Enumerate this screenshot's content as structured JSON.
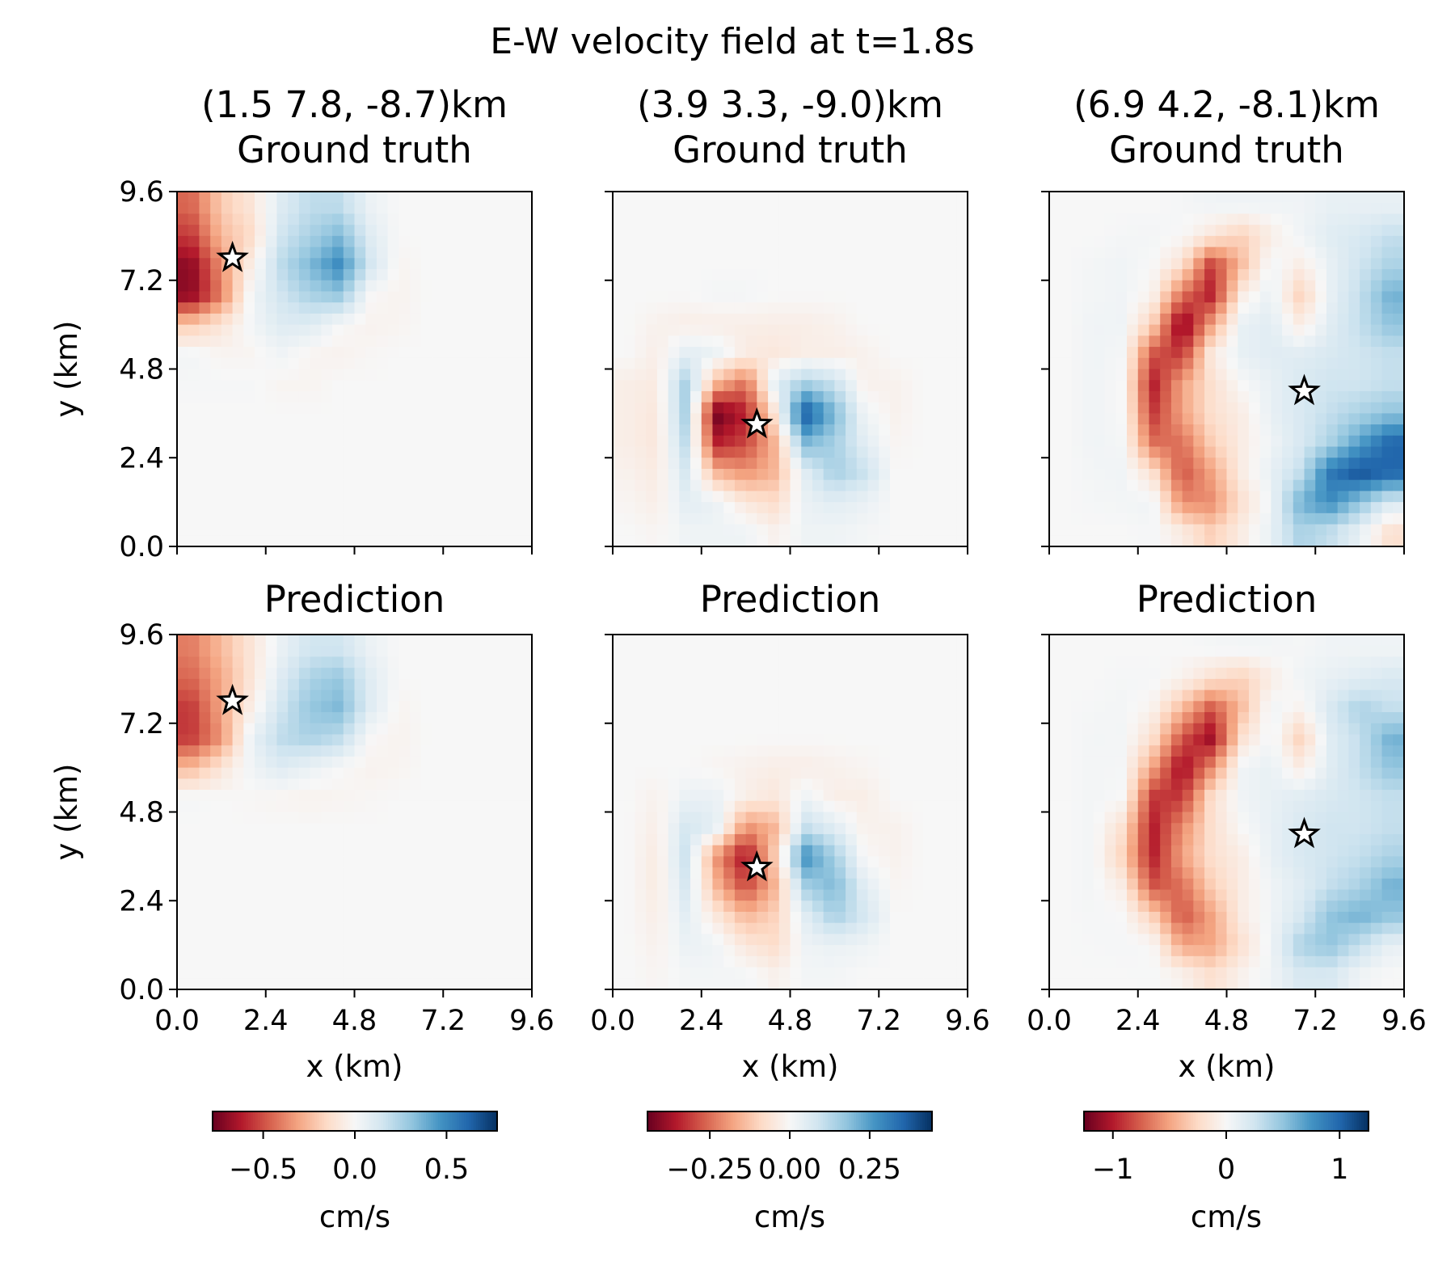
{
  "title": "E-W velocity field at t=1.8s",
  "columns": [
    {
      "location": "(1.5 7.8, -8.7)km",
      "colorbar": {
        "colormap": "RdBu",
        "clim": [
          -0.776,
          0.776
        ],
        "ticks": [
          -0.5,
          0.0,
          0.5
        ],
        "tick_labels": [
          "−0.5",
          "0.0",
          "0.5"
        ],
        "label": "cm/s"
      }
    },
    {
      "location": "(3.9 3.3, -9.0)km",
      "colorbar": {
        "colormap": "RdBu",
        "clim": [
          -0.445,
          0.445
        ],
        "ticks": [
          -0.25,
          0.0,
          0.25
        ],
        "tick_labels": [
          "−0.25",
          "0.00",
          "0.25"
        ],
        "label": "cm/s"
      }
    },
    {
      "location": "(6.9 4.2, -8.1)km",
      "colorbar": {
        "colormap": "RdBu",
        "clim": [
          -1.255,
          1.255
        ],
        "ticks": [
          -1,
          0,
          1
        ],
        "tick_labels": [
          "−1",
          "0",
          "1"
        ],
        "label": "cm/s"
      }
    }
  ],
  "rows": [
    {
      "title": "Ground truth"
    },
    {
      "title": "Prediction"
    }
  ],
  "axes": {
    "xlabel": "x (km)",
    "ylabel": "y (km)",
    "xlim": [
      0,
      9.6
    ],
    "ylim": [
      0,
      9.6
    ],
    "ticks": [
      0.0,
      2.4,
      4.8,
      7.2,
      9.6
    ],
    "tick_labels": [
      "0.0",
      "2.4",
      "4.8",
      "7.2",
      "9.6"
    ]
  },
  "chart_data": [
    {
      "type": "heatmap",
      "row": 0,
      "col": 0,
      "title": "Ground truth",
      "source": {
        "x": 1.5,
        "y": 7.8,
        "marker": "star"
      },
      "grid_note_rows": "top (y=9.2) to bottom (y=0.4), 0.8 km cells",
      "values": [
        [
          -0.45,
          -0.2,
          -0.1,
          0.1,
          0.2,
          0.2,
          0.05,
          0,
          0,
          0,
          0,
          0
        ],
        [
          -0.55,
          -0.25,
          -0.15,
          0.15,
          0.25,
          0.35,
          0.1,
          0,
          0,
          0,
          0,
          0
        ],
        [
          -0.7,
          -0.35,
          -0.05,
          0.2,
          0.35,
          0.5,
          0.15,
          -0.02,
          0,
          0,
          0,
          0
        ],
        [
          -0.7,
          -0.4,
          0.02,
          0.15,
          0.25,
          0.3,
          0,
          -0.03,
          0,
          0,
          0,
          0
        ],
        [
          -0.2,
          -0.1,
          0.02,
          0.1,
          0.1,
          0,
          -0.03,
          -0.02,
          0,
          0,
          0,
          0
        ],
        [
          0.02,
          -0.02,
          -0.02,
          0.03,
          -0.02,
          -0.03,
          -0.01,
          0,
          0,
          0,
          0,
          0
        ],
        [
          0.01,
          0.01,
          0.01,
          -0.02,
          -0.02,
          0,
          0,
          0,
          0,
          0,
          0,
          0
        ],
        [
          0,
          0,
          0,
          0,
          0,
          0,
          0,
          0,
          0,
          0,
          0,
          0
        ],
        [
          0,
          0,
          0,
          0,
          0,
          0,
          0,
          0,
          0,
          0,
          0,
          0
        ],
        [
          0,
          0,
          0,
          0,
          0,
          0,
          0,
          0,
          0,
          0,
          0,
          0
        ],
        [
          0,
          0,
          0,
          0,
          0,
          0,
          0,
          0,
          0,
          0,
          0,
          0
        ],
        [
          0,
          0,
          0,
          0,
          0,
          0,
          0,
          0,
          0,
          0,
          0,
          0
        ]
      ]
    },
    {
      "type": "heatmap",
      "row": 0,
      "col": 1,
      "title": "Ground truth",
      "source": {
        "x": 3.9,
        "y": 3.3,
        "marker": "star"
      },
      "values": [
        [
          0,
          0,
          0,
          0,
          0,
          0,
          0,
          0,
          0,
          0,
          0,
          0
        ],
        [
          0,
          0,
          0,
          0,
          0,
          0,
          0,
          0,
          0,
          0,
          0,
          0
        ],
        [
          0,
          0,
          0,
          0,
          0,
          0,
          0,
          0,
          0,
          0,
          0,
          0
        ],
        [
          0,
          0,
          0,
          0.01,
          0.01,
          0,
          0,
          0,
          0,
          0,
          0,
          0
        ],
        [
          0,
          -0.02,
          -0.03,
          -0.03,
          -0.03,
          -0.03,
          -0.03,
          -0.02,
          0,
          0,
          0,
          0
        ],
        [
          0,
          -0.03,
          0.05,
          0.03,
          -0.04,
          -0.05,
          -0.03,
          -0.03,
          -0.02,
          0,
          0,
          0
        ],
        [
          -0.03,
          -0.04,
          0.15,
          -0.15,
          -0.25,
          0.05,
          0.15,
          0.1,
          -0.02,
          -0.02,
          0,
          0
        ],
        [
          -0.03,
          -0.05,
          0.15,
          -0.44,
          -0.35,
          -0.05,
          0.38,
          0.2,
          0.02,
          -0.02,
          0,
          0
        ],
        [
          -0.03,
          -0.05,
          0.12,
          -0.35,
          -0.3,
          -0.15,
          0.2,
          0.15,
          0.05,
          -0.01,
          0,
          0
        ],
        [
          -0.02,
          -0.04,
          0.08,
          -0.15,
          -0.2,
          -0.15,
          0.05,
          0.15,
          0.1,
          0,
          0,
          0
        ],
        [
          -0.01,
          -0.03,
          0.05,
          0.03,
          -0.05,
          -0.08,
          0.03,
          0.05,
          0.03,
          0,
          0,
          0
        ],
        [
          0,
          -0.01,
          0.02,
          0.02,
          0.02,
          -0.02,
          0.02,
          0.02,
          0.01,
          0,
          0,
          0
        ]
      ]
    },
    {
      "type": "heatmap",
      "row": 0,
      "col": 2,
      "title": "Ground truth",
      "source": {
        "x": 6.9,
        "y": 4.2,
        "marker": "star"
      },
      "values": [
        [
          0,
          0,
          0,
          0,
          0.02,
          0.05,
          0.05,
          0.05,
          0.05,
          0.1,
          0.1,
          0.1
        ],
        [
          0,
          0,
          0.02,
          0.03,
          0,
          -0.15,
          -0.3,
          -0.1,
          0.05,
          0.15,
          0.2,
          0.3
        ],
        [
          0,
          0.03,
          0.05,
          0,
          -0.2,
          -0.9,
          -0.4,
          0.05,
          -0.1,
          0.1,
          0.25,
          0.4
        ],
        [
          0,
          0.03,
          0.05,
          -0.05,
          -0.7,
          -1.0,
          -0.1,
          0.1,
          -0.3,
          0.1,
          0.3,
          0.6
        ],
        [
          0,
          0.05,
          0.05,
          -0.3,
          -1.2,
          -0.5,
          0.1,
          0.15,
          -0.1,
          0.15,
          0.3,
          0.5
        ],
        [
          0,
          0.05,
          0.02,
          -0.8,
          -0.9,
          -0.1,
          0.1,
          0.15,
          0.15,
          0.2,
          0.25,
          0.3
        ],
        [
          0,
          0.05,
          0,
          -1.0,
          -0.5,
          -0.2,
          0,
          0.1,
          0.2,
          0.25,
          0.25,
          0.3
        ],
        [
          0,
          0.05,
          0,
          -0.9,
          -0.5,
          -0.2,
          -0.1,
          0.1,
          0.2,
          0.3,
          0.4,
          0.5
        ],
        [
          0,
          0.05,
          0.02,
          -0.7,
          -0.7,
          -0.3,
          -0.1,
          0.05,
          0.2,
          0.4,
          0.7,
          1.0
        ],
        [
          0,
          0.03,
          0.05,
          -0.2,
          -0.8,
          -0.5,
          -0.1,
          0.1,
          0.3,
          0.9,
          1.1,
          1.0
        ],
        [
          0,
          0.02,
          0.03,
          0.05,
          -0.6,
          -0.6,
          -0.2,
          0.05,
          0.6,
          0.8,
          0.5,
          0.2
        ],
        [
          0,
          0,
          0,
          0.02,
          -0.1,
          -0.3,
          -0.1,
          0.1,
          0.4,
          0.3,
          0.1,
          -0.2
        ]
      ]
    },
    {
      "type": "heatmap",
      "row": 1,
      "col": 0,
      "title": "Prediction",
      "source": {
        "x": 1.5,
        "y": 7.8,
        "marker": "star"
      },
      "values": [
        [
          -0.4,
          -0.25,
          -0.1,
          0.05,
          0.15,
          0.15,
          0.05,
          0,
          0,
          0,
          0,
          0
        ],
        [
          -0.45,
          -0.3,
          -0.1,
          0.1,
          0.25,
          0.3,
          0.1,
          0,
          0,
          0,
          0,
          0
        ],
        [
          -0.55,
          -0.3,
          -0.05,
          0.15,
          0.3,
          0.35,
          0.1,
          -0.02,
          0,
          0,
          0,
          0
        ],
        [
          -0.55,
          -0.35,
          0.05,
          0.2,
          0.25,
          0.2,
          0,
          -0.03,
          0,
          0,
          0,
          0
        ],
        [
          -0.25,
          -0.1,
          0.03,
          0.1,
          0.05,
          0,
          -0.03,
          -0.02,
          0,
          0,
          0,
          0
        ],
        [
          0.01,
          0,
          -0.01,
          -0.02,
          -0.03,
          -0.02,
          -0.01,
          0,
          0,
          0,
          0,
          0
        ],
        [
          0,
          0,
          0,
          0,
          0,
          0,
          0,
          0,
          0,
          0,
          0,
          0
        ],
        [
          0,
          0,
          0,
          0,
          0,
          0,
          0,
          0,
          0,
          0,
          0,
          0
        ],
        [
          0,
          0,
          0,
          0,
          0,
          0,
          0,
          0,
          0,
          0,
          0,
          0
        ],
        [
          0,
          0,
          0,
          0,
          0,
          0,
          0,
          0,
          0,
          0,
          0,
          0
        ],
        [
          0,
          0,
          0,
          0,
          0,
          0,
          0,
          0,
          0,
          0,
          0,
          0
        ],
        [
          0,
          0,
          0,
          0,
          0,
          0,
          0,
          0,
          0,
          0,
          0,
          0
        ]
      ]
    },
    {
      "type": "heatmap",
      "row": 1,
      "col": 1,
      "title": "Prediction",
      "source": {
        "x": 3.9,
        "y": 3.3,
        "marker": "star"
      },
      "values": [
        [
          0,
          0,
          0,
          0,
          0,
          0,
          0,
          0,
          0,
          0,
          0,
          0
        ],
        [
          0,
          0,
          0,
          0,
          0,
          0,
          0,
          0,
          0,
          0,
          0,
          0
        ],
        [
          0,
          0,
          0,
          0,
          0,
          0,
          0,
          0,
          0,
          0,
          0,
          0
        ],
        [
          0,
          0,
          0,
          0,
          0,
          0,
          0,
          0,
          0,
          0,
          0,
          0
        ],
        [
          0,
          0,
          0,
          -0.01,
          -0.02,
          -0.03,
          -0.03,
          -0.02,
          -0.01,
          0,
          0,
          0
        ],
        [
          0,
          -0.02,
          0.03,
          0.03,
          -0.03,
          -0.05,
          0.02,
          -0.03,
          -0.03,
          0,
          0,
          0
        ],
        [
          0,
          -0.03,
          0.08,
          0.05,
          -0.2,
          -0.15,
          0.1,
          0.05,
          -0.02,
          -0.02,
          0,
          0
        ],
        [
          0,
          -0.04,
          0.1,
          -0.2,
          -0.38,
          -0.1,
          0.28,
          0.15,
          0,
          -0.02,
          0,
          0
        ],
        [
          0,
          -0.04,
          0.08,
          -0.15,
          -0.3,
          -0.15,
          0.15,
          0.2,
          0.05,
          -0.01,
          0,
          0
        ],
        [
          0,
          -0.03,
          0.05,
          -0.05,
          -0.15,
          -0.1,
          0.05,
          0.15,
          0.08,
          0,
          0,
          0
        ],
        [
          0,
          -0.02,
          0.03,
          0.02,
          -0.05,
          -0.08,
          0.02,
          0.03,
          0.02,
          0,
          0,
          0
        ],
        [
          0,
          -0.01,
          0.01,
          0.01,
          0.01,
          -0.02,
          0.01,
          0.01,
          0,
          0,
          0,
          0
        ]
      ]
    },
    {
      "type": "heatmap",
      "row": 1,
      "col": 2,
      "title": "Prediction",
      "source": {
        "x": 6.9,
        "y": 4.2,
        "marker": "star"
      },
      "values": [
        [
          0,
          0,
          0,
          0,
          0,
          0.02,
          0.03,
          0.03,
          0.02,
          0.05,
          0.05,
          0.05
        ],
        [
          0,
          0,
          0.02,
          0.02,
          -0.05,
          -0.2,
          -0.3,
          -0.1,
          0.05,
          0.1,
          0.15,
          0.2
        ],
        [
          0,
          0.02,
          0.03,
          -0.05,
          -0.4,
          -0.8,
          -0.4,
          0.05,
          -0.05,
          0.2,
          0.4,
          0.3
        ],
        [
          0,
          0.03,
          0.03,
          -0.2,
          -0.8,
          -1.1,
          -0.2,
          0.05,
          -0.3,
          0.15,
          0.3,
          0.6
        ],
        [
          0,
          0.03,
          0.02,
          -0.5,
          -1.1,
          -0.6,
          0.05,
          0.1,
          -0.1,
          0.15,
          0.3,
          0.5
        ],
        [
          0,
          0.03,
          0,
          -0.9,
          -0.9,
          -0.2,
          0.05,
          0.1,
          0.15,
          0.2,
          0.25,
          0.3
        ],
        [
          0,
          0.03,
          -0.2,
          -1.0,
          -0.6,
          -0.2,
          0,
          0.1,
          0.2,
          0.25,
          0.25,
          0.3
        ],
        [
          0,
          0.03,
          -0.3,
          -1.0,
          -0.5,
          -0.2,
          -0.1,
          0.1,
          0.2,
          0.25,
          0.3,
          0.4
        ],
        [
          0,
          0.03,
          -0.1,
          -0.8,
          -0.7,
          -0.3,
          -0.1,
          0.05,
          0.15,
          0.3,
          0.4,
          0.6
        ],
        [
          0,
          0.02,
          0,
          -0.3,
          -0.8,
          -0.5,
          -0.1,
          0.05,
          0.2,
          0.5,
          0.6,
          0.5
        ],
        [
          0,
          0.01,
          0.02,
          0,
          -0.5,
          -0.5,
          -0.2,
          0.05,
          0.4,
          0.5,
          0.3,
          0.1
        ],
        [
          0,
          0,
          0,
          0.01,
          -0.05,
          -0.2,
          -0.05,
          0.05,
          0.2,
          0.2,
          0.05,
          0
        ]
      ]
    }
  ]
}
